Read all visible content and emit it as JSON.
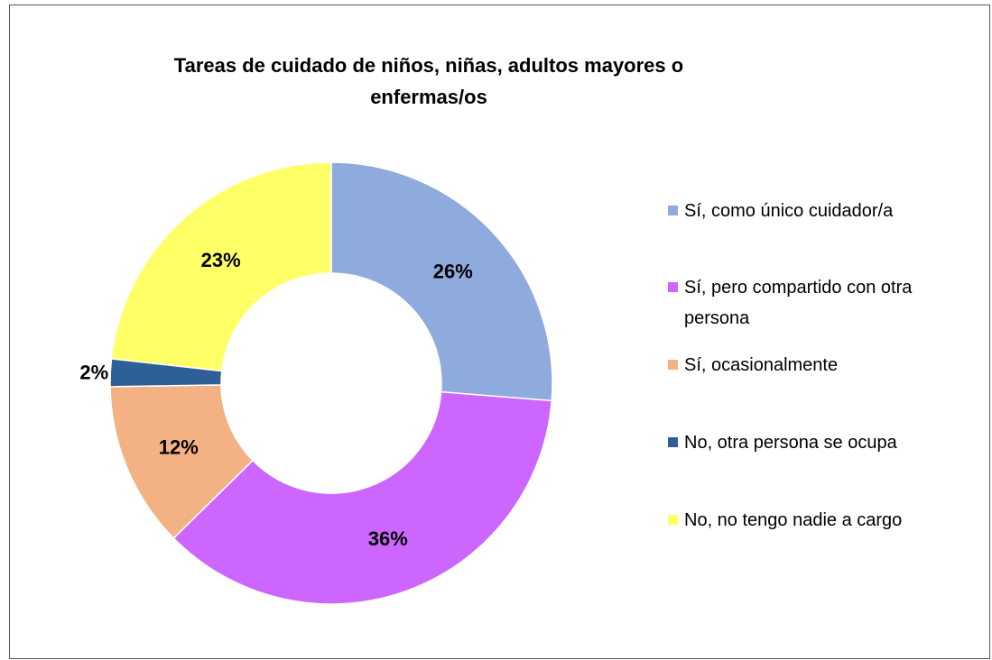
{
  "chart_data": {
    "type": "donut",
    "title": "Tareas de cuidado de niños, niñas, adultos mayores o enfermas/os",
    "categories": [
      "Sí, como único cuidador/a",
      "Sí, pero compartido con otra persona",
      "Sí, ocasionalmente",
      "No, otra persona se ocupa",
      "No, no tengo nadie a cargo"
    ],
    "values": [
      26,
      36,
      12,
      2,
      23
    ],
    "value_labels": [
      "26%",
      "36%",
      "12%",
      "2%",
      "23%"
    ],
    "colors": [
      "#8faadc",
      "#cc66ff",
      "#f4b183",
      "#2e5f96",
      "#ffff66"
    ],
    "legend": "right"
  }
}
